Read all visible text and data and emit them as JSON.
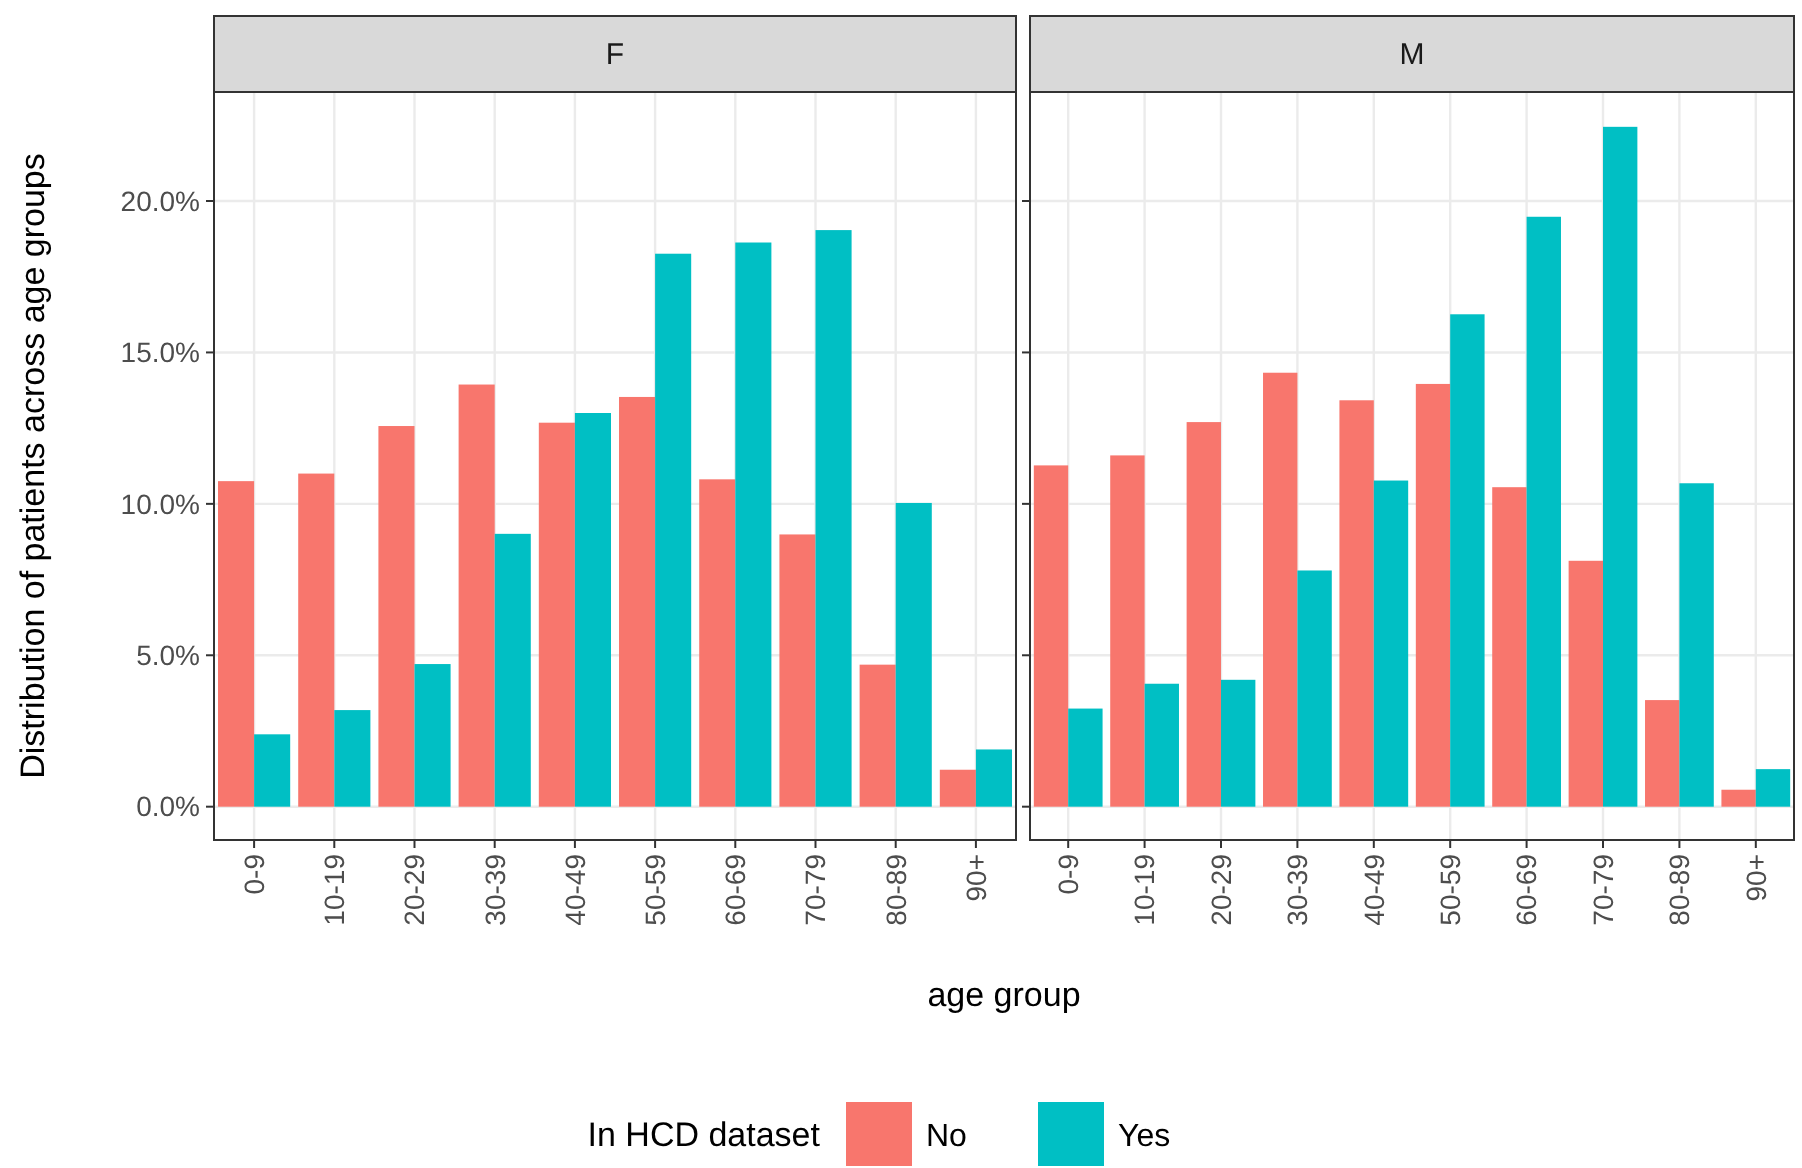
{
  "chart_data": [
    {
      "type": "bar",
      "title": "F",
      "ylabel": "Distribution of patients across age groups",
      "xlabel": "age group",
      "legend_title": "In HCD dataset",
      "legend": "bottom",
      "grid": true,
      "categories": [
        "0-9",
        "10-19",
        "20-29",
        "30-39",
        "40-49",
        "50-59",
        "60-69",
        "70-79",
        "80-89",
        "90+"
      ],
      "ylim": [
        -1.1,
        23.6
      ],
      "yticks": [
        {
          "value": 0,
          "label": "0.0%"
        },
        {
          "value": 5,
          "label": "5.0%"
        },
        {
          "value": 10,
          "label": "10.0%"
        },
        {
          "value": 15,
          "label": "15.0%"
        },
        {
          "value": 20,
          "label": "20.0%"
        }
      ],
      "series": [
        {
          "name": "No",
          "color": "#f8766d",
          "values": [
            10.75,
            11.0,
            12.57,
            13.94,
            12.68,
            13.53,
            10.81,
            8.99,
            4.69,
            1.22
          ]
        },
        {
          "name": "Yes",
          "color": "#00bfc4",
          "values": [
            2.39,
            3.19,
            4.71,
            9.01,
            13.0,
            18.26,
            18.63,
            19.04,
            10.03,
            1.89
          ]
        }
      ]
    },
    {
      "type": "bar",
      "title": "M",
      "grid": true,
      "tick_labels": "x",
      "categories": [
        "0-9",
        "10-19",
        "20-29",
        "30-39",
        "40-49",
        "50-59",
        "60-69",
        "70-79",
        "80-89",
        "90+"
      ],
      "ylim": [
        -1.1,
        23.6
      ],
      "yticks": [
        {
          "value": 0,
          "label": null
        },
        {
          "value": 5,
          "label": null
        },
        {
          "value": 10,
          "label": null
        },
        {
          "value": 15,
          "label": null
        },
        {
          "value": 20,
          "label": null
        }
      ],
      "series": [
        {
          "color": "#f8766d",
          "values": [
            11.27,
            11.6,
            12.7,
            14.33,
            13.42,
            13.96,
            10.55,
            8.12,
            3.52,
            0.56
          ]
        },
        {
          "color": "#00bfc4",
          "values": [
            3.24,
            4.06,
            4.19,
            7.8,
            10.77,
            16.26,
            19.48,
            22.45,
            10.68,
            1.24
          ]
        }
      ]
    }
  ]
}
